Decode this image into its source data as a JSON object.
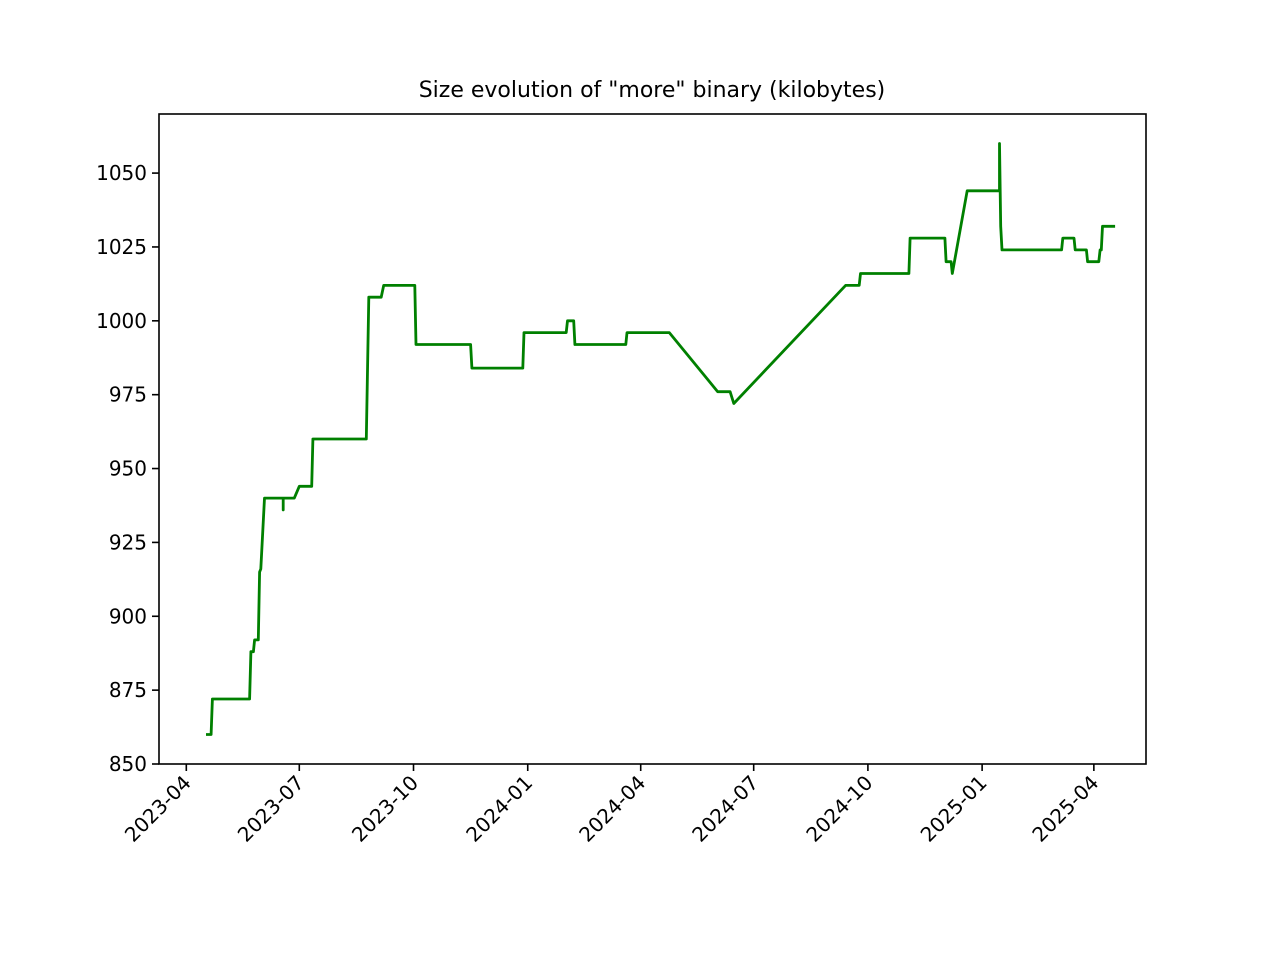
{
  "chart_data": {
    "type": "line",
    "title": "Size evolution of \"more\" binary (kilobytes)",
    "xlabel": "",
    "ylabel": "",
    "grid": false,
    "legend": false,
    "line_color": "#008000",
    "ylim": [
      850,
      1070
    ],
    "xlim": [
      "2023-03-10",
      "2025-05-13"
    ],
    "y_ticks": [
      850,
      875,
      900,
      925,
      950,
      975,
      1000,
      1025,
      1050
    ],
    "x_ticks": [
      "2023-04",
      "2023-07",
      "2023-10",
      "2024-01",
      "2024-04",
      "2024-07",
      "2024-10",
      "2025-01",
      "2025-04"
    ],
    "series": [
      {
        "x": [
          "2023-04-18",
          "2023-04-21",
          "2023-04-22",
          "2023-05-22",
          "2023-05-23",
          "2023-05-25",
          "2023-05-26",
          "2023-05-29",
          "2023-05-30",
          "2023-05-31",
          "2023-06-03",
          "2023-06-18",
          "2023-06-18",
          "2023-06-18",
          "2023-06-27",
          "2023-07-01",
          "2023-07-11",
          "2023-07-12",
          "2023-08-24",
          "2023-08-26",
          "2023-09-05",
          "2023-09-07",
          "2023-10-02",
          "2023-10-03",
          "2023-11-16",
          "2023-11-17",
          "2023-12-28",
          "2023-12-29",
          "2024-02-01",
          "2024-02-02",
          "2024-02-07",
          "2024-02-08",
          "2024-03-20",
          "2024-03-21",
          "2024-04-24",
          "2024-06-02",
          "2024-06-12",
          "2024-06-15",
          "2024-09-13",
          "2024-09-24",
          "2024-09-25",
          "2024-11-03",
          "2024-11-04",
          "2024-12-02",
          "2024-12-03",
          "2024-12-07",
          "2024-12-08",
          "2024-12-20",
          "2025-01-15",
          "2025-01-15",
          "2025-01-16",
          "2025-01-17",
          "2025-03-06",
          "2025-03-07",
          "2025-03-16",
          "2025-03-17",
          "2025-03-26",
          "2025-03-27",
          "2025-04-05",
          "2025-04-06",
          "2025-04-07",
          "2025-04-08",
          "2025-04-17"
        ],
        "y": [
          860,
          860,
          872,
          872,
          888,
          888,
          892,
          892,
          915,
          916,
          940,
          940,
          936,
          940,
          940,
          944,
          944,
          960,
          960,
          1008,
          1008,
          1012,
          1012,
          992,
          992,
          984,
          984,
          996,
          996,
          1000,
          1000,
          992,
          992,
          996,
          996,
          976,
          976,
          972,
          1012,
          1012,
          1016,
          1016,
          1028,
          1028,
          1020,
          1020,
          1016,
          1044,
          1044,
          1060,
          1032,
          1024,
          1024,
          1028,
          1028,
          1024,
          1024,
          1020,
          1020,
          1024,
          1024,
          1032,
          1032
        ]
      }
    ]
  }
}
